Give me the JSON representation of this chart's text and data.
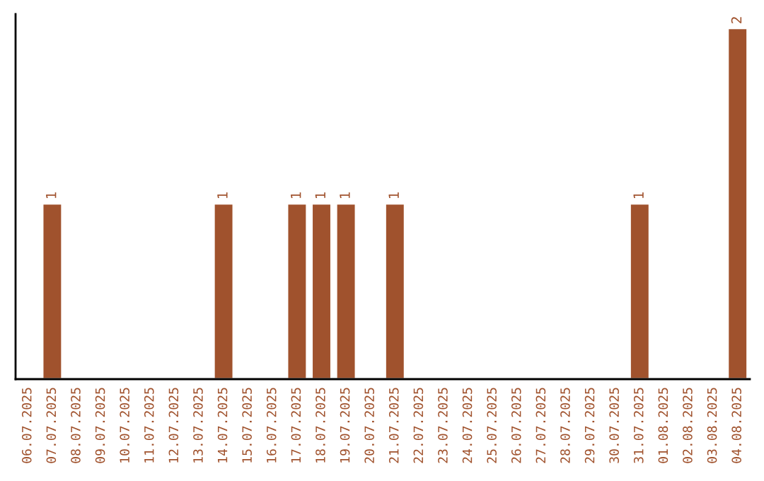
{
  "chart_data": {
    "type": "bar",
    "categories": [
      "06.07.2025",
      "07.07.2025",
      "08.07.2025",
      "09.07.2025",
      "10.07.2025",
      "11.07.2025",
      "12.07.2025",
      "13.07.2025",
      "14.07.2025",
      "15.07.2025",
      "16.07.2025",
      "17.07.2025",
      "18.07.2025",
      "19.07.2025",
      "20.07.2025",
      "21.07.2025",
      "22.07.2025",
      "23.07.2025",
      "24.07.2025",
      "25.07.2025",
      "26.07.2025",
      "27.07.2025",
      "28.07.2025",
      "29.07.2025",
      "30.07.2025",
      "31.07.2025",
      "01.08.2025",
      "02.08.2025",
      "03.08.2025",
      "04.08.2025"
    ],
    "values": [
      0,
      1,
      0,
      0,
      0,
      0,
      0,
      0,
      1,
      0,
      0,
      1,
      1,
      1,
      0,
      1,
      0,
      0,
      0,
      0,
      0,
      0,
      0,
      0,
      0,
      1,
      0,
      0,
      0,
      2
    ],
    "value_labels": [
      null,
      "1",
      null,
      null,
      null,
      null,
      null,
      null,
      "1",
      null,
      null,
      "1",
      "1",
      "1",
      null,
      "1",
      null,
      null,
      null,
      null,
      null,
      null,
      null,
      null,
      null,
      "1",
      null,
      null,
      null,
      "2"
    ],
    "color": "#a0522d",
    "tick_labels": "x"
  }
}
